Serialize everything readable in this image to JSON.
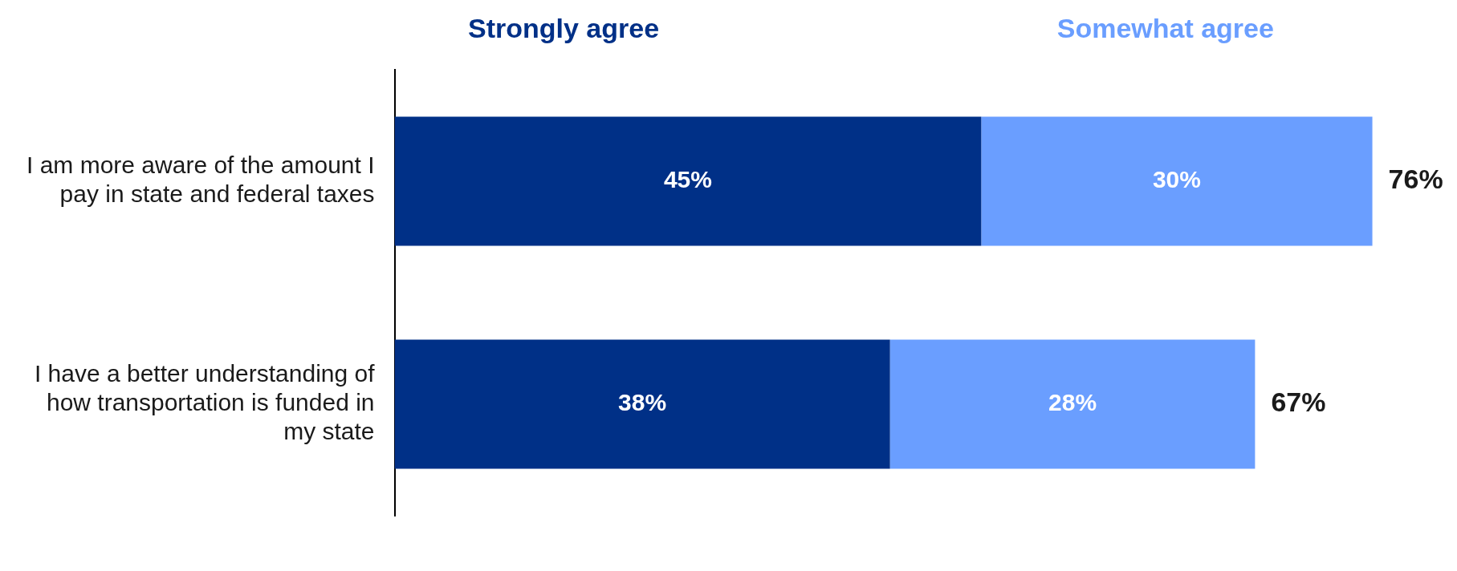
{
  "chart_data": {
    "type": "bar",
    "orientation": "horizontal",
    "stacked": true,
    "legend": "top",
    "tick_labels": "y",
    "categories": [
      "I am more aware of the amount I pay in state and federal taxes",
      "I have a better understanding of how transportation is funded in my state"
    ],
    "series": [
      {
        "name": "Strongly agree",
        "color": "#003087",
        "values": [
          45,
          38
        ],
        "value_labels": [
          "45%",
          "38%"
        ]
      },
      {
        "name": "Somewhat agree",
        "color": "#6a9eff",
        "values": [
          30,
          28
        ],
        "value_labels": [
          "30%",
          "28%"
        ]
      }
    ],
    "totals": [
      "76%",
      "67%"
    ]
  }
}
